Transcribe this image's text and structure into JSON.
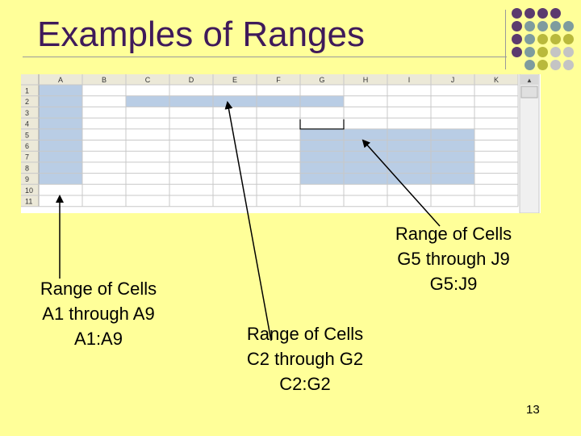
{
  "title": "Examples of Ranges",
  "spreadsheet": {
    "columns": [
      "A",
      "B",
      "C",
      "D",
      "E",
      "F",
      "G",
      "H",
      "I",
      "J",
      "K"
    ],
    "rows": [
      "1",
      "2",
      "3",
      "4",
      "5",
      "6",
      "7",
      "8",
      "9",
      "10",
      "11"
    ],
    "highlight_color": "#B9CDE5",
    "highlighted_ranges": [
      "A1:A9",
      "C2:G2",
      "G5:J9"
    ]
  },
  "labels": {
    "range_a": {
      "line1": "Range of Cells",
      "line2": "A1 through A9",
      "line3": "A1:A9"
    },
    "range_c": {
      "line1": "Range of Cells",
      "line2": "C2 through G2",
      "line3": "C2:G2"
    },
    "range_g": {
      "line1": "Range of Cells",
      "line2": "G5 through J9",
      "line3": "G5:J9"
    }
  },
  "page_number": "13",
  "colors": {
    "background": "#FFFF99",
    "title": "#3F1A5A",
    "dot_purple": "#5B3A6E",
    "dot_teal": "#7E9C9E",
    "dot_olive": "#B9B93C",
    "dot_grey": "#C4C4C4"
  }
}
